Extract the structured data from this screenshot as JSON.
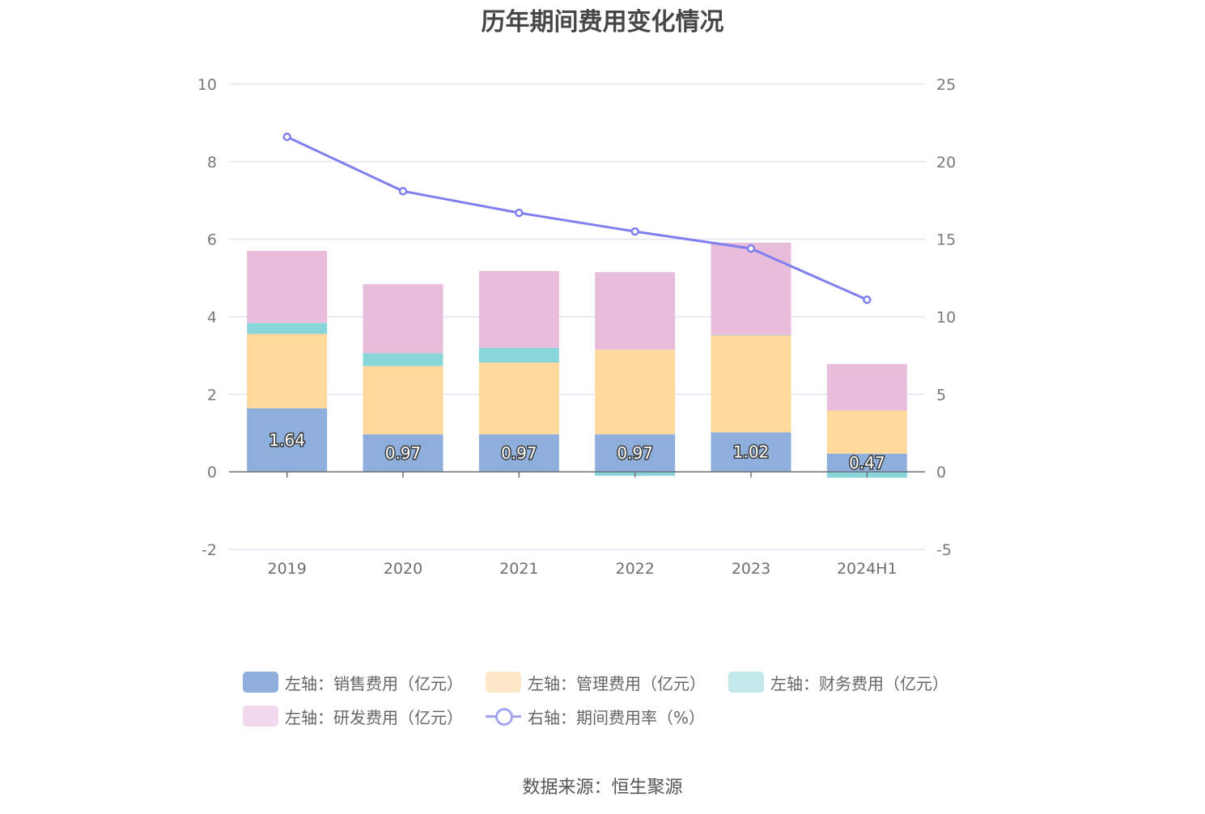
{
  "title": "历年期间费用变化情况",
  "source": "数据来源：恒生聚源",
  "chart_data": {
    "type": "bar",
    "stacked": true,
    "categories": [
      "2019",
      "2020",
      "2021",
      "2022",
      "2023",
      "2024H1"
    ],
    "left_axis": {
      "ylim": [
        -2,
        10
      ],
      "ticks": [
        "-2",
        "0",
        "2",
        "4",
        "6",
        "8",
        "10"
      ]
    },
    "right_axis": {
      "ylim": [
        -5,
        25
      ],
      "ticks": [
        "-5",
        "0",
        "5",
        "10",
        "15",
        "20",
        "25"
      ]
    },
    "grid": true,
    "series": [
      {
        "name": "左轴：销售费用（亿元）",
        "type": "bar",
        "axis": "left",
        "color": "#8eaedc",
        "values": [
          1.64,
          0.97,
          0.97,
          0.97,
          1.02,
          0.47
        ],
        "labels": [
          "1.64",
          "0.97",
          "0.97",
          "0.97",
          "1.02",
          "0.47"
        ]
      },
      {
        "name": "左轴：管理费用（亿元）",
        "type": "bar",
        "axis": "left",
        "color": "#fed99b",
        "values": [
          1.92,
          1.76,
          1.85,
          2.18,
          2.5,
          1.11
        ]
      },
      {
        "name": "左轴：财务费用（亿元）",
        "type": "bar",
        "axis": "left",
        "color": "#88d6da",
        "values": [
          0.28,
          0.33,
          0.38,
          -0.1,
          0.01,
          -0.15
        ]
      },
      {
        "name": "左轴：研发费用（亿元）",
        "type": "bar",
        "axis": "left",
        "color": "#e8bcdb",
        "values": [
          1.86,
          1.78,
          1.98,
          2.0,
          2.38,
          1.2
        ]
      },
      {
        "name": "右轴：期间费用率（%）",
        "type": "line",
        "axis": "right",
        "color": "#7f7ff0",
        "values": [
          21.6,
          18.1,
          16.7,
          15.5,
          14.4,
          11.1
        ]
      }
    ],
    "legend_position": "bottom",
    "legend_swatch_colors": [
      "#8eaedc",
      "#fee8c8",
      "#c2e8ea",
      "#f2d8ec",
      "#a6a6f0"
    ]
  }
}
